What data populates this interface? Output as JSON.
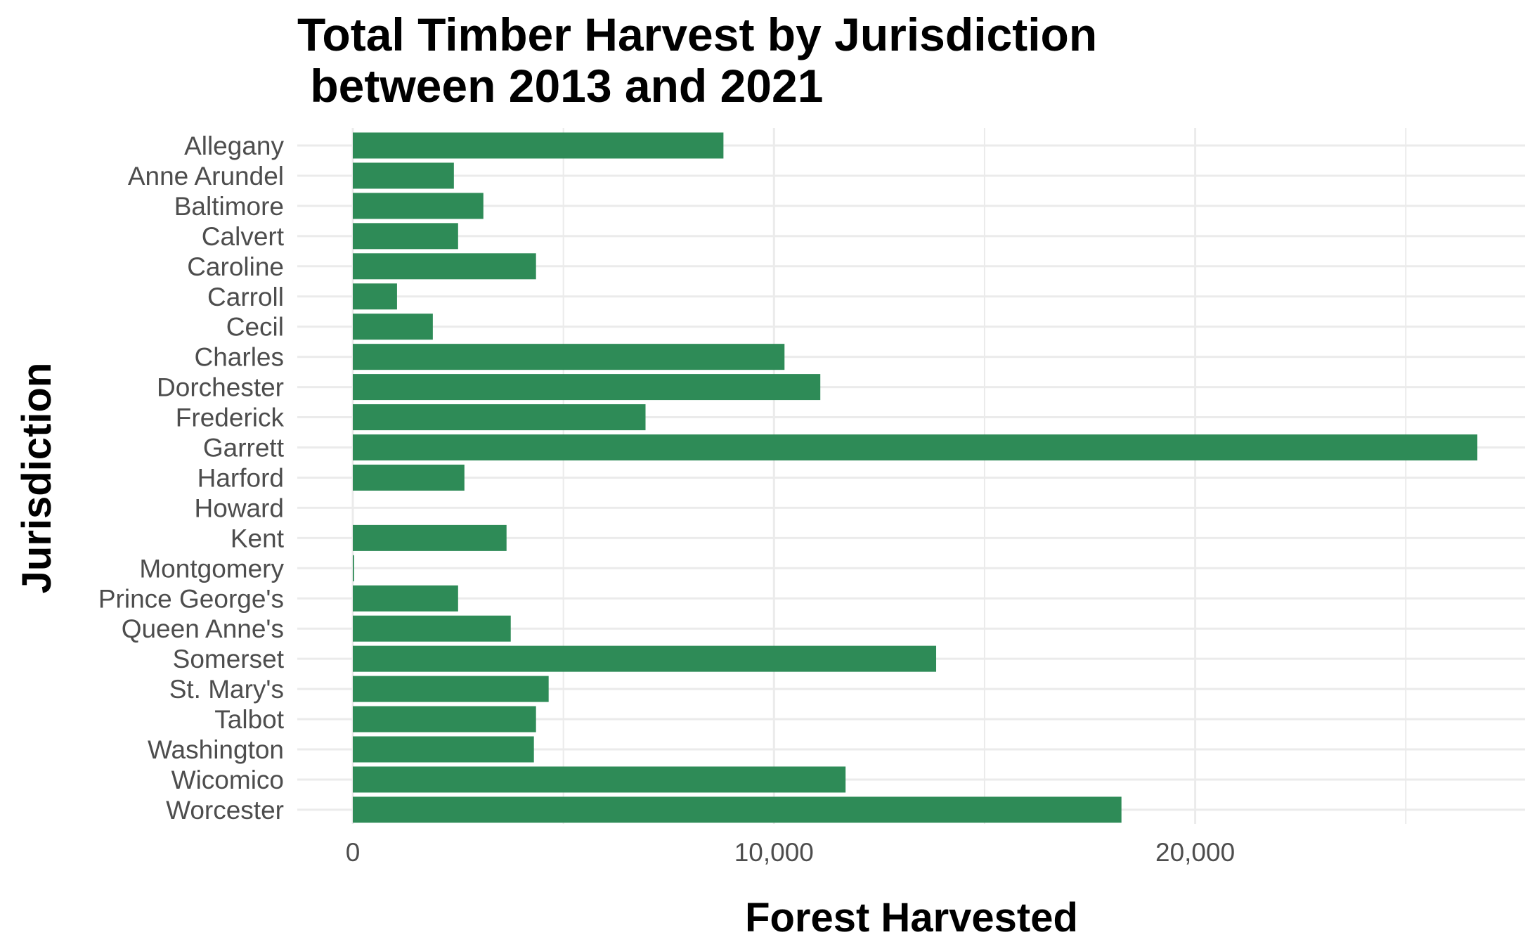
{
  "chart_data": {
    "type": "bar",
    "orientation": "horizontal",
    "title_line1": "Total Timber Harvest by Jurisdiction",
    "title_line2": " between 2013 and 2021",
    "xlabel": "Forest Harvested",
    "ylabel": "Jurisdiction",
    "xlim": [
      0,
      27800
    ],
    "x_ticks": [
      {
        "value": 0,
        "label": "0"
      },
      {
        "value": 10000,
        "label": "10,000"
      },
      {
        "value": 20000,
        "label": "20,000"
      }
    ],
    "x_minor_ticks": [
      5000,
      15000,
      25000
    ],
    "grid": true,
    "legend": "none",
    "bar_color": "#2e8b57",
    "categories": [
      "Allegany",
      "Anne Arundel",
      "Baltimore",
      "Calvert",
      "Caroline",
      "Carroll",
      "Cecil",
      "Charles",
      "Dorchester",
      "Frederick",
      "Garrett",
      "Harford",
      "Howard",
      "Kent",
      "Montgomery",
      "Prince George's",
      "Queen Anne's",
      "Somerset",
      "St. Mary's",
      "Talbot",
      "Washington",
      "Wicomico",
      "Worcester"
    ],
    "values": [
      8800,
      2400,
      3100,
      2500,
      4350,
      1050,
      1900,
      10250,
      11100,
      6950,
      26700,
      2650,
      0,
      3650,
      30,
      2500,
      3750,
      13850,
      4650,
      4350,
      4300,
      11700,
      18250
    ]
  }
}
